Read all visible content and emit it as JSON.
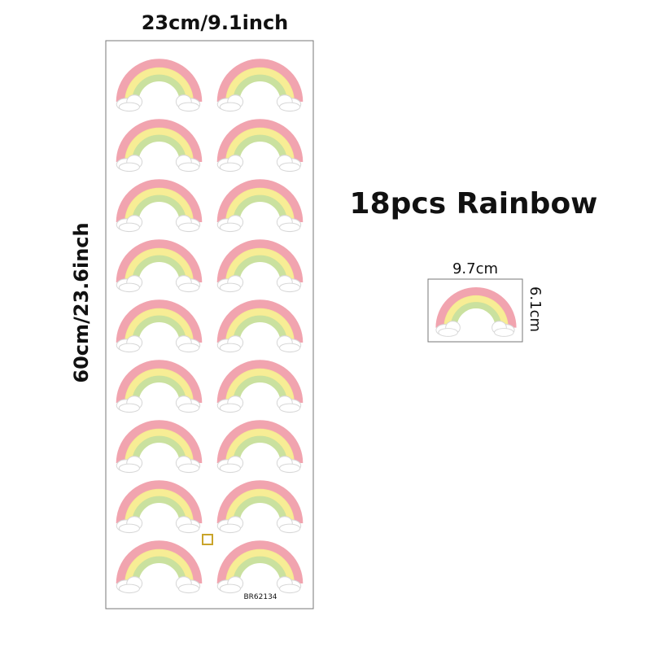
{
  "sheet": {
    "width_label": "23cm/9.1inch",
    "height_label": "60cm/23.6inch",
    "code": "BR62134"
  },
  "title": "18pcs Rainbow",
  "sample": {
    "width_label": "9.7cm",
    "height_label": "6.1cm"
  }
}
